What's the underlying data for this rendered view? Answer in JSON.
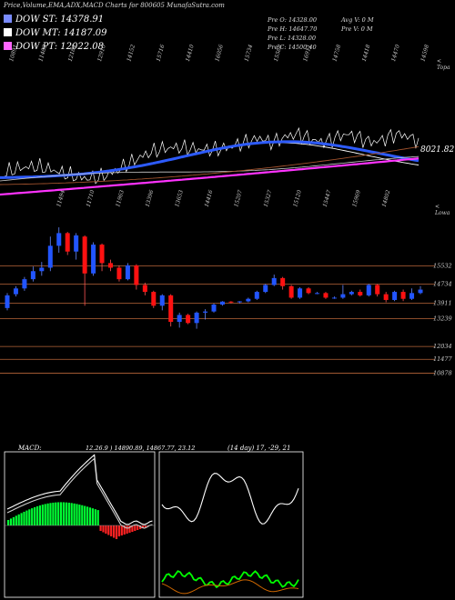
{
  "title": "Price,Volume,EMA,ADX,MACD Charts for 800605 MunafaSutra.com",
  "legend": [
    {
      "label": "DOW ST: 14378.91",
      "color": "#7a8cff"
    },
    {
      "label": "DOW MT: 14187.09",
      "color": "#ffffff"
    },
    {
      "label": "DOW PT: 12022.08",
      "color": "#ff66ff"
    }
  ],
  "prev_info": {
    "col1": [
      "Pre O: 14328.00",
      "Pre H: 14647.70",
      "Pre L: 14328.00",
      "Pre C: 14500.40"
    ],
    "col2": [
      "Avg V: 0 M",
      "Pre V: 0 M"
    ]
  },
  "labels": {
    "topa": "< Topa",
    "lowa": "< Lowa",
    "current_value": "8021.82",
    "macd": "MACD:",
    "macd_values": "12.26.9 ) 14890.89, 14867.77, 23.12",
    "adx": "(14 day) 17, -29, 21"
  },
  "chart_data": [
    {
      "type": "line",
      "name": "price-ema-panel",
      "top_tick_labels": [
        "10891",
        "11482",
        "12184",
        "12910",
        "14152",
        "15716",
        "14410",
        "16056",
        "15734",
        "15588",
        "16911",
        "14758",
        "14418",
        "14470",
        "14598"
      ],
      "bottom_tick_labels": [
        "11494",
        "11710",
        "11963",
        "13396",
        "13653",
        "14416",
        "15207",
        "15327",
        "15120",
        "15447",
        "15969",
        "14802"
      ],
      "ema_value": 8021.82
    },
    {
      "type": "bar",
      "name": "candlestick-panel",
      "price_levels": [
        15532,
        14734,
        13911,
        13239,
        12034,
        11477,
        10878
      ],
      "candles": [
        {
          "o": 13700,
          "h": 14350,
          "l": 13600,
          "c": 14250
        },
        {
          "o": 14300,
          "h": 14650,
          "l": 14200,
          "c": 14550
        },
        {
          "o": 14550,
          "h": 15050,
          "l": 14450,
          "c": 14950
        },
        {
          "o": 14950,
          "h": 15500,
          "l": 14850,
          "c": 15300
        },
        {
          "o": 15300,
          "h": 15700,
          "l": 15100,
          "c": 15450
        },
        {
          "o": 15450,
          "h": 16800,
          "l": 15300,
          "c": 16400
        },
        {
          "o": 16400,
          "h": 17200,
          "l": 16100,
          "c": 16950
        },
        {
          "o": 16950,
          "h": 17000,
          "l": 16000,
          "c": 16150
        },
        {
          "o": 16150,
          "h": 16950,
          "l": 15800,
          "c": 16850
        },
        {
          "o": 16800,
          "h": 16850,
          "l": 13800,
          "c": 15200
        },
        {
          "o": 15200,
          "h": 16550,
          "l": 15100,
          "c": 16450
        },
        {
          "o": 16450,
          "h": 16500,
          "l": 15300,
          "c": 15650
        },
        {
          "o": 15650,
          "h": 15800,
          "l": 15300,
          "c": 15450
        },
        {
          "o": 15450,
          "h": 15550,
          "l": 14850,
          "c": 14950
        },
        {
          "o": 14950,
          "h": 15650,
          "l": 14900,
          "c": 15550
        },
        {
          "o": 15550,
          "h": 15600,
          "l": 14500,
          "c": 14700
        },
        {
          "o": 14700,
          "h": 14800,
          "l": 14250,
          "c": 14400
        },
        {
          "o": 14400,
          "h": 14450,
          "l": 13700,
          "c": 13800
        },
        {
          "o": 13800,
          "h": 14300,
          "l": 13600,
          "c": 14250
        },
        {
          "o": 14250,
          "h": 14300,
          "l": 12900,
          "c": 13100
        },
        {
          "o": 13100,
          "h": 13500,
          "l": 12850,
          "c": 13400
        },
        {
          "o": 13400,
          "h": 13450,
          "l": 13000,
          "c": 13050
        },
        {
          "o": 13050,
          "h": 13550,
          "l": 12800,
          "c": 13500
        },
        {
          "o": 13500,
          "h": 13650,
          "l": 13200,
          "c": 13550
        },
        {
          "o": 13550,
          "h": 13900,
          "l": 13500,
          "c": 13850
        },
        {
          "o": 13850,
          "h": 14000,
          "l": 13800,
          "c": 13980
        },
        {
          "o": 13980,
          "h": 14000,
          "l": 13900,
          "c": 13950
        },
        {
          "o": 13950,
          "h": 14000,
          "l": 13900,
          "c": 13990
        },
        {
          "o": 13990,
          "h": 14150,
          "l": 13950,
          "c": 14100
        },
        {
          "o": 14100,
          "h": 14450,
          "l": 14050,
          "c": 14400
        },
        {
          "o": 14400,
          "h": 14750,
          "l": 14350,
          "c": 14700
        },
        {
          "o": 14700,
          "h": 15150,
          "l": 14650,
          "c": 15000
        },
        {
          "o": 15000,
          "h": 15050,
          "l": 14500,
          "c": 14650
        },
        {
          "o": 14650,
          "h": 14700,
          "l": 14100,
          "c": 14150
        },
        {
          "o": 14150,
          "h": 14600,
          "l": 14100,
          "c": 14550
        },
        {
          "o": 14550,
          "h": 14600,
          "l": 14300,
          "c": 14350
        },
        {
          "o": 14350,
          "h": 14400,
          "l": 14300,
          "c": 14350
        },
        {
          "o": 14350,
          "h": 14400,
          "l": 14100,
          "c": 14150
        },
        {
          "o": 14150,
          "h": 14200,
          "l": 14100,
          "c": 14150
        },
        {
          "o": 14150,
          "h": 14700,
          "l": 14100,
          "c": 14300
        },
        {
          "o": 14300,
          "h": 14450,
          "l": 14250,
          "c": 14400
        },
        {
          "o": 14400,
          "h": 14500,
          "l": 14200,
          "c": 14250
        },
        {
          "o": 14250,
          "h": 14750,
          "l": 14200,
          "c": 14700
        },
        {
          "o": 14700,
          "h": 14750,
          "l": 14200,
          "c": 14300
        },
        {
          "o": 14300,
          "h": 14400,
          "l": 13950,
          "c": 14050
        },
        {
          "o": 14050,
          "h": 14450,
          "l": 14000,
          "c": 14400
        },
        {
          "o": 14400,
          "h": 14500,
          "l": 14000,
          "c": 14100
        },
        {
          "o": 14100,
          "h": 14550,
          "l": 14050,
          "c": 14350
        },
        {
          "o": 14350,
          "h": 14650,
          "l": 14300,
          "c": 14500
        }
      ]
    }
  ],
  "colors": {
    "up": "#2255ff",
    "down": "#ff1111",
    "level_line": "#b8663a",
    "ema_blue": "#2d5bff",
    "ema_magenta": "#ff33ff",
    "macd_green": "#00ff33",
    "adx_green": "#00ff00",
    "adx_orange": "#cc6600"
  }
}
